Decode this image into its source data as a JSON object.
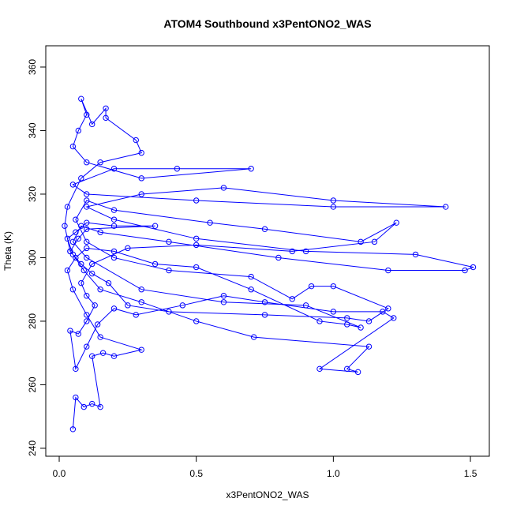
{
  "chart_data": {
    "type": "line",
    "title": "ATOM4 Southbound x3PentONO2_WAS",
    "xlabel": "x3PentONO2_WAS",
    "ylabel": "Theta (K)",
    "color": "#0000ff",
    "marker": "open-circle",
    "xlim": [
      -0.049,
      1.569
    ],
    "ylim": [
      237.5,
      366.7
    ],
    "xticks": [
      {
        "value": 0,
        "label": "0.0"
      },
      0.5,
      {
        "value": 1,
        "label": "1.0"
      },
      1.5
    ],
    "yticks": [
      240,
      260,
      280,
      300,
      320,
      340,
      360
    ],
    "x": [
      0.05,
      0.06,
      0.09,
      0.12,
      0.15,
      0.12,
      0.16,
      0.2,
      0.3,
      0.15,
      0.1,
      0.05,
      0.03,
      0.06,
      0.1,
      0.2,
      0.35,
      0.5,
      0.7,
      0.95,
      1.05,
      1.1,
      0.9,
      0.6,
      0.3,
      0.1,
      0.05,
      0.08,
      0.15,
      0.4,
      0.8,
      1.2,
      1.48,
      1.51,
      1.3,
      0.9,
      0.5,
      0.2,
      0.1,
      0.3,
      0.6,
      1.0,
      1.41,
      1.0,
      0.5,
      0.1,
      0.05,
      0.2,
      0.43,
      0.7,
      0.3,
      0.1,
      0.05,
      0.07,
      0.1,
      0.08,
      0.12,
      0.17,
      0.17,
      0.28,
      0.3,
      0.15,
      0.08,
      0.03,
      0.02,
      0.04,
      0.08,
      0.12,
      0.18,
      0.25,
      0.4,
      0.75,
      1.05,
      1.13,
      1.2,
      1.0,
      0.92,
      0.85,
      0.7,
      0.4,
      0.2,
      0.1,
      0.06,
      0.1,
      0.2,
      0.55,
      0.75,
      1.1,
      1.23,
      1.15,
      0.85,
      0.5,
      0.25,
      0.12,
      0.08,
      0.1,
      0.13,
      0.1,
      0.07,
      0.04,
      0.06,
      0.1,
      0.14,
      0.2,
      0.28,
      0.45,
      0.6,
      0.75,
      1.0,
      1.18,
      1.22,
      0.95,
      1.09,
      1.05,
      1.13,
      0.71,
      0.5,
      0.3,
      0.15,
      0.09,
      0.05,
      0.03,
      0.06,
      0.1,
      0.2,
      0.35,
      0.1,
      0.07,
      0.04
    ],
    "values": [
      246,
      256,
      253,
      254,
      253,
      269,
      270,
      269,
      271,
      275,
      282,
      290,
      296,
      300,
      303,
      302,
      298,
      297,
      290,
      280,
      279,
      278,
      285,
      286,
      290,
      300,
      305,
      310,
      308,
      305,
      300,
      296,
      296,
      297,
      301,
      302,
      306,
      312,
      316,
      320,
      322,
      318,
      316,
      316,
      318,
      320,
      323,
      328,
      328,
      328,
      325,
      330,
      335,
      340,
      345,
      350,
      342,
      347,
      344,
      337,
      333,
      330,
      325,
      316,
      310,
      302,
      298,
      295,
      292,
      285,
      283,
      282,
      281,
      280,
      284,
      291,
      291,
      287,
      294,
      296,
      300,
      305,
      312,
      318,
      315,
      311,
      309,
      305,
      311,
      305,
      302,
      304,
      303,
      298,
      292,
      288,
      285,
      280,
      276,
      277,
      265,
      272,
      279,
      284,
      282,
      285,
      288,
      286,
      283,
      283,
      281,
      265,
      264,
      265,
      272,
      275,
      280,
      286,
      290,
      296,
      301,
      306,
      308,
      311,
      310,
      310,
      309,
      306,
      302
    ]
  }
}
